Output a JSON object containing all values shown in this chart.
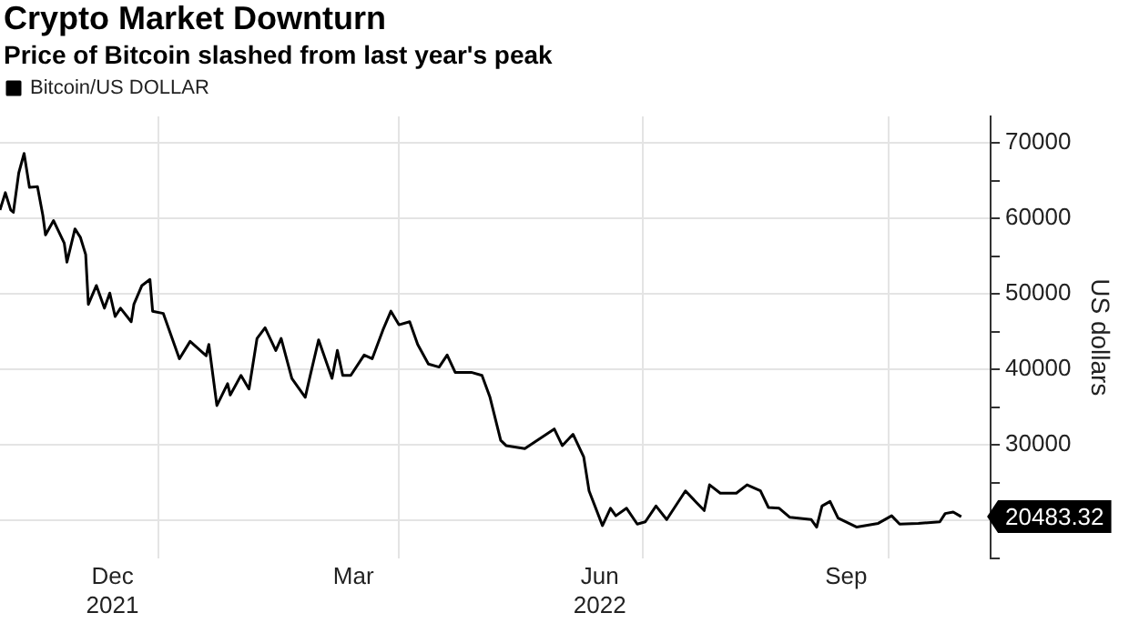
{
  "chart_data": {
    "type": "line",
    "title": "Crypto Market Downturn",
    "subtitle": "Price of Bitcoin slashed from last year's peak",
    "ylabel": "US dollars",
    "x": [
      "2021-11-03",
      "2021-11-05",
      "2021-11-07",
      "2021-11-08",
      "2021-11-10",
      "2021-11-12",
      "2021-11-14",
      "2021-11-17",
      "2021-11-19",
      "2021-11-20",
      "2021-11-23",
      "2021-11-27",
      "2021-11-28",
      "2021-12-01",
      "2021-12-03",
      "2021-12-05",
      "2021-12-06",
      "2021-12-09",
      "2021-12-12",
      "2021-12-14",
      "2021-12-16",
      "2021-12-18",
      "2021-12-22",
      "2021-12-23",
      "2021-12-26",
      "2021-12-29",
      "2021-12-30",
      "2022-01-03",
      "2022-01-09",
      "2022-01-13",
      "2022-01-19",
      "2022-01-20",
      "2022-01-23",
      "2022-01-27",
      "2022-01-28",
      "2022-02-01",
      "2022-02-04",
      "2022-02-07",
      "2022-02-10",
      "2022-02-14",
      "2022-02-16",
      "2022-02-20",
      "2022-02-25",
      "2022-02-27",
      "2022-03-02",
      "2022-03-07",
      "2022-03-09",
      "2022-03-11",
      "2022-03-14",
      "2022-03-19",
      "2022-03-22",
      "2022-03-26",
      "2022-03-29",
      "2022-04-01",
      "2022-04-05",
      "2022-04-08",
      "2022-04-12",
      "2022-04-16",
      "2022-04-19",
      "2022-04-22",
      "2022-04-28",
      "2022-05-02",
      "2022-05-05",
      "2022-05-09",
      "2022-05-11",
      "2022-05-18",
      "2022-05-29",
      "2022-06-01",
      "2022-06-05",
      "2022-06-09",
      "2022-06-11",
      "2022-06-16",
      "2022-06-19",
      "2022-06-21",
      "2022-06-25",
      "2022-06-29",
      "2022-07-02",
      "2022-07-06",
      "2022-07-10",
      "2022-07-17",
      "2022-07-21",
      "2022-07-24",
      "2022-07-26",
      "2022-07-30",
      "2022-08-05",
      "2022-08-09",
      "2022-08-14",
      "2022-08-17",
      "2022-08-21",
      "2022-08-25",
      "2022-09-02",
      "2022-09-04",
      "2022-09-06",
      "2022-09-09",
      "2022-09-12",
      "2022-09-19",
      "2022-09-27",
      "2022-10-02",
      "2022-10-05",
      "2022-10-12",
      "2022-10-20",
      "2022-10-22",
      "2022-10-25",
      "2022-10-28"
    ],
    "series": [
      {
        "name": "Bitcoin/US DOLLAR",
        "color": "#000000",
        "values": [
          61100,
          63400,
          61100,
          60800,
          66000,
          68600,
          64100,
          64200,
          60400,
          57800,
          59700,
          56700,
          54200,
          58600,
          57500,
          55200,
          48600,
          51100,
          48100,
          50100,
          47000,
          48100,
          46300,
          48600,
          51100,
          51900,
          47700,
          47400,
          41400,
          43700,
          41800,
          43300,
          35200,
          38100,
          36600,
          39200,
          37400,
          44100,
          45500,
          42500,
          44100,
          38800,
          36300,
          39400,
          43900,
          38800,
          42500,
          39200,
          39200,
          41900,
          41400,
          45200,
          47700,
          45900,
          46300,
          43300,
          40700,
          40300,
          41900,
          39600,
          39600,
          39200,
          36300,
          30600,
          29900,
          29500,
          32100,
          29900,
          31400,
          28400,
          23900,
          19300,
          21600,
          20600,
          21600,
          19500,
          19800,
          21900,
          20100,
          23900,
          22400,
          21300,
          24700,
          23600,
          23600,
          24700,
          23900,
          21700,
          21600,
          20400,
          20100,
          19100,
          21900,
          22500,
          20300,
          19100,
          19600,
          20600,
          19500,
          19600,
          19800,
          20900,
          21100,
          20483.32
        ]
      }
    ],
    "annotations": [
      {
        "text": "20483.32",
        "x": "2022-10-28",
        "y": 20483.32
      }
    ],
    "xlim": [
      "2021-11-03",
      "2022-11-08"
    ],
    "xticks": [
      {
        "value": "2021-12-15",
        "label": "Dec\n2021"
      },
      {
        "value": "2022-01-01",
        "label": null
      },
      {
        "value": "2022-03-15",
        "label": "Mar"
      },
      {
        "value": "2022-04-01",
        "label": null
      },
      {
        "value": "2022-06-15",
        "label": "Jun\n2022"
      },
      {
        "value": "2022-07-01",
        "label": null
      },
      {
        "value": "2022-09-15",
        "label": "Sep"
      },
      {
        "value": "2022-10-01",
        "label": null
      }
    ],
    "ylim": [
      15000,
      73500
    ],
    "yticks": [
      {
        "value": 15000,
        "label": null
      },
      {
        "value": 20000,
        "label": null
      },
      {
        "value": 25000,
        "label": null
      },
      30000,
      {
        "value": 35000,
        "label": null
      },
      40000,
      {
        "value": 45000,
        "label": null
      },
      50000,
      {
        "value": 55000,
        "label": null
      },
      60000,
      {
        "value": 65000,
        "label": null
      },
      70000
    ],
    "grid": true,
    "legend": "top left",
    "marker": "none",
    "line_style": "solid"
  }
}
